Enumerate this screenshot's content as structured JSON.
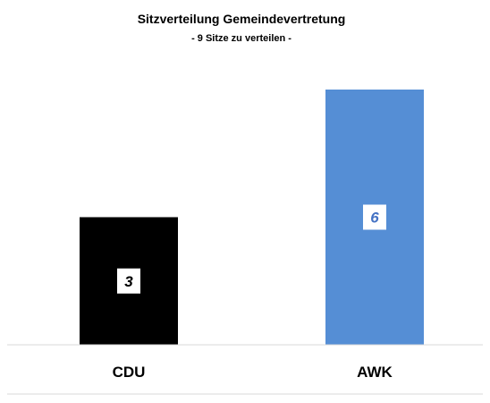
{
  "chart_data": {
    "type": "bar",
    "title": "Sitzverteilung Gemeindevertretung",
    "subtitle": "- 9 Sitze zu verteilen -",
    "categories": [
      "CDU",
      "AWK"
    ],
    "values": [
      3,
      6
    ],
    "colors": [
      "#000000",
      "#558ed5"
    ],
    "data_label_colors": [
      "#000000",
      "#4472c4"
    ],
    "ylim": [
      0,
      6
    ],
    "grid": false,
    "legend": "none"
  }
}
